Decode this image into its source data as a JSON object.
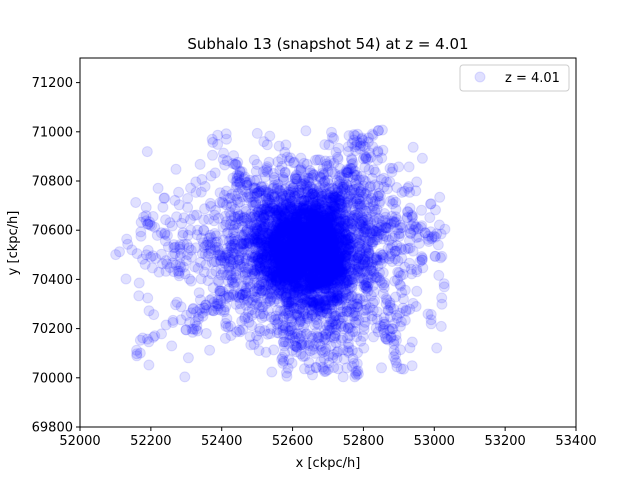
{
  "chart_data": {
    "type": "scatter",
    "title": "Subhalo 13 (snapshot 54) at z = 4.01",
    "xlabel": "x [ckpc/h]",
    "ylabel": "y [ckpc/h]",
    "xlim": [
      52000,
      53400
    ],
    "ylim": [
      69800,
      71300
    ],
    "xticks": [
      52000,
      52200,
      52400,
      52600,
      52800,
      53000,
      53200,
      53400
    ],
    "yticks": [
      69800,
      70000,
      70200,
      70400,
      70600,
      70800,
      71000,
      71200
    ],
    "grid": false,
    "legend_position": "top-right",
    "series": [
      {
        "name": "z = 4.01",
        "color": "#0000ff",
        "alpha": 0.12,
        "cluster": {
          "center": [
            52640,
            70520
          ],
          "x_extent": [
            52100,
            53030
          ],
          "y_extent": [
            70000,
            71010
          ],
          "core_spread": [
            75,
            110
          ],
          "halo_spread": [
            190,
            210
          ]
        }
      }
    ]
  }
}
